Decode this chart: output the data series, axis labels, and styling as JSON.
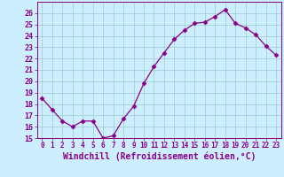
{
  "x": [
    0,
    1,
    2,
    3,
    4,
    5,
    6,
    7,
    8,
    9,
    10,
    11,
    12,
    13,
    14,
    15,
    16,
    17,
    18,
    19,
    20,
    21,
    22,
    23
  ],
  "y": [
    18.5,
    17.5,
    16.5,
    16.0,
    16.5,
    16.5,
    15.0,
    15.2,
    16.7,
    17.8,
    19.8,
    21.3,
    22.5,
    23.7,
    24.5,
    25.1,
    25.2,
    25.7,
    26.3,
    25.1,
    24.7,
    24.1,
    23.1,
    22.3
  ],
  "line_color": "#880088",
  "marker": "D",
  "markersize": 2.5,
  "linewidth": 0.9,
  "xlabel": "Windchill (Refroidissement éolien,°C)",
  "xlabel_fontsize": 7,
  "ylim": [
    15,
    27
  ],
  "xlim": [
    -0.5,
    23.5
  ],
  "yticks": [
    15,
    16,
    17,
    18,
    19,
    20,
    21,
    22,
    23,
    24,
    25,
    26
  ],
  "xticks": [
    0,
    1,
    2,
    3,
    4,
    5,
    6,
    7,
    8,
    9,
    10,
    11,
    12,
    13,
    14,
    15,
    16,
    17,
    18,
    19,
    20,
    21,
    22,
    23
  ],
  "bg_color": "#cceeff",
  "grid_color": "#99cccc",
  "ytick_fontsize": 6,
  "xtick_fontsize": 5.5,
  "tick_color": "#880088"
}
